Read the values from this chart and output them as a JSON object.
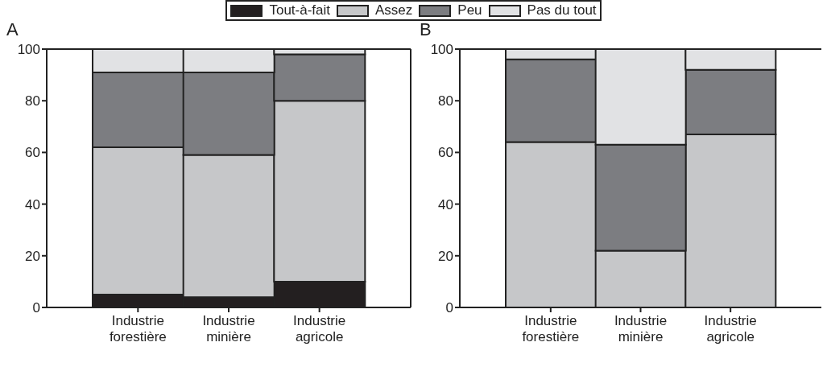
{
  "chart_data": [
    {
      "type": "bar",
      "title": "A",
      "stacked": true,
      "categories": [
        "Industrie forestière",
        "Industrie minière",
        "Industrie agricole"
      ],
      "series": [
        {
          "name": "Tout-à-fait",
          "color": "#231f20",
          "values": [
            5,
            4,
            10
          ]
        },
        {
          "name": "Assez",
          "color": "#c6c7c9",
          "values": [
            57,
            55,
            70
          ]
        },
        {
          "name": "Peu",
          "color": "#7c7d81",
          "values": [
            29,
            32,
            18
          ]
        },
        {
          "name": "Pas du tout",
          "color": "#e1e2e4",
          "values": [
            9,
            9,
            2
          ]
        }
      ],
      "ylim": [
        0,
        100
      ],
      "yticks": [
        0,
        20,
        40,
        60,
        80,
        100
      ],
      "legend": "top"
    },
    {
      "type": "bar",
      "title": "B",
      "stacked": true,
      "categories": [
        "Industrie forestière",
        "Industrie minière",
        "Industrie agricole"
      ],
      "series": [
        {
          "color": "#c6c7c9",
          "values": [
            64,
            22,
            67
          ]
        },
        {
          "color": "#7c7d81",
          "values": [
            32,
            41,
            25
          ]
        },
        {
          "color": "#e1e2e4",
          "values": [
            4,
            37,
            8
          ]
        }
      ],
      "ylim": [
        0,
        100
      ],
      "yticks": [
        0,
        20,
        40,
        60,
        80,
        100
      ]
    }
  ]
}
